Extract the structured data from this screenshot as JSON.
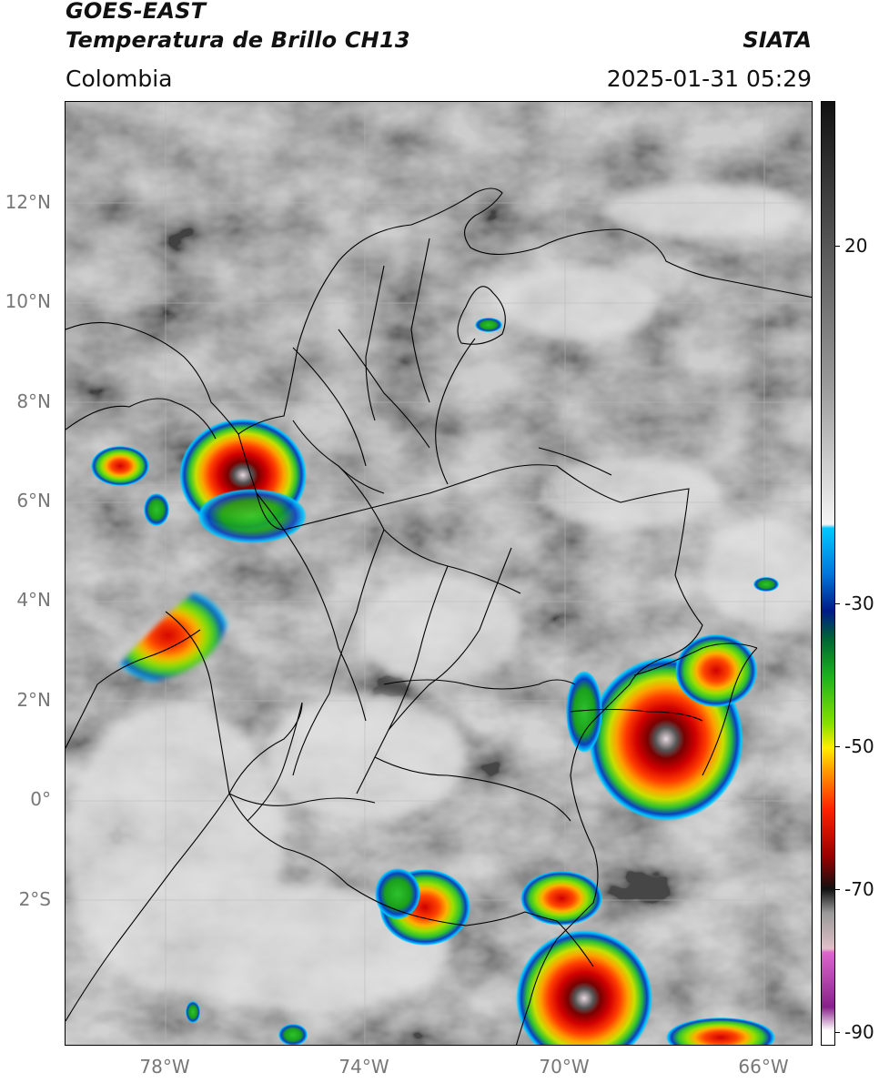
{
  "header": {
    "satellite": "GOES-EAST",
    "product": "Temperatura de Brillo CH13",
    "region": "Colombia",
    "agency": "SIATA",
    "datetime": "2025-01-31 05:29"
  },
  "map": {
    "lat_ticks": [
      "12°N",
      "10°N",
      "8°N",
      "6°N",
      "4°N",
      "2°N",
      "0°",
      "2°S"
    ],
    "lon_ticks": [
      "78°W",
      "74°W",
      "70°W",
      "66°W"
    ]
  },
  "colorbar": {
    "ticks": [
      "20",
      "-30",
      "-50",
      "-70",
      "-90"
    ],
    "stops": [
      "#111111",
      "#555555",
      "#9a9a9a",
      "#d8d8d8",
      "#f5f5f5",
      "#00c8ff",
      "#0077dd",
      "#001a88",
      "#006633",
      "#1db31d",
      "#88e000",
      "#ffee00",
      "#ff9900",
      "#ff2200",
      "#990000",
      "#111111",
      "#999999",
      "#e0c0c8",
      "#dd66cc",
      "#882288",
      "#ffffff"
    ],
    "colors": {
      "cold_core": "#e8d8e0",
      "deep_red": "#b00000",
      "red": "#ff2a00",
      "orange": "#ff9a00",
      "yellow": "#ffe600",
      "green": "#2ec22e",
      "blue": "#0a40c0",
      "cyan": "#00c8ff"
    }
  }
}
